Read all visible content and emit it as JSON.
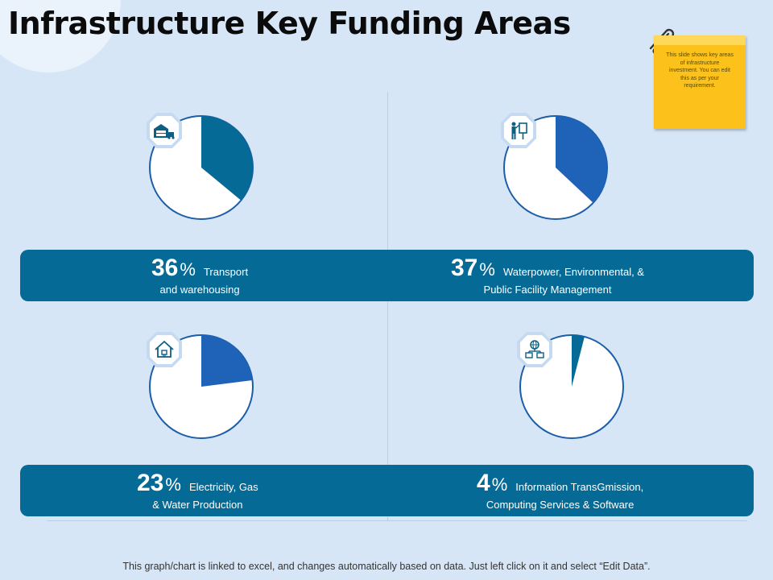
{
  "title": "Infrastructure Key Funding Areas",
  "sticky_note": "This slide shows key areas of infrastructure investment. You can edit this as per your requirement.",
  "footer": "This graph/chart is linked to excel, and changes automatically based on data. Just left click on it and select “Edit Data”.",
  "colors": {
    "background": "#d6e6f7",
    "band": "#056a95",
    "donut_outline": "#1b5ea8",
    "slice_teal": "#056a95",
    "slice_blue": "#1f63b8",
    "sticky": "#fcc11a"
  },
  "chart_data": [
    {
      "type": "pie",
      "value": 36,
      "number": "36",
      "pct_symbol": "%",
      "label_line1": "Transport",
      "label_line2": "and warehousing",
      "icon": "warehouse-truck-icon",
      "slice_color": "#056a95"
    },
    {
      "type": "pie",
      "value": 37,
      "number": "37",
      "pct_symbol": "%",
      "label_line1": "Waterpower, Environmental, &",
      "label_line2": "Public Facility Management",
      "icon": "presenter-board-icon",
      "slice_color": "#1f63b8"
    },
    {
      "type": "pie",
      "value": 23,
      "number": "23",
      "pct_symbol": "%",
      "label_line1": "Electricity, Gas",
      "label_line2": "& Water Production",
      "icon": "house-plug-icon",
      "slice_color": "#1f63b8"
    },
    {
      "type": "pie",
      "value": 4,
      "number": "4",
      "pct_symbol": "%",
      "label_line1": "Information TransGmission,",
      "label_line2": "Computing Services & Software",
      "icon": "globe-network-icon",
      "slice_color": "#056a95"
    }
  ]
}
